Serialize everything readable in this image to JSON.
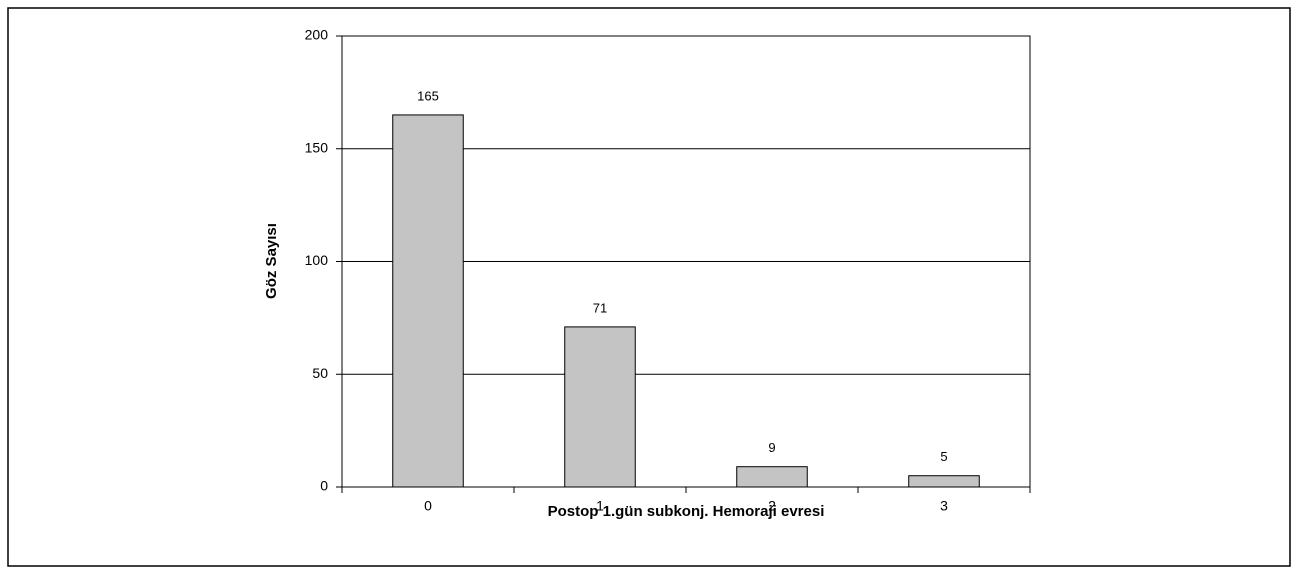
{
  "chart_data": {
    "type": "bar",
    "categories": [
      "0",
      "1",
      "2",
      "3"
    ],
    "values": [
      165,
      71,
      9,
      5
    ],
    "color": "#c4c4c4",
    "xlabel": "Postop 1.gün subkonj. Hemoraji evresi",
    "ylabel": "Göz Sayısı",
    "ylim": [
      0,
      200
    ],
    "yticks": [
      0,
      50,
      100,
      150,
      200
    ],
    "grid": true
  }
}
